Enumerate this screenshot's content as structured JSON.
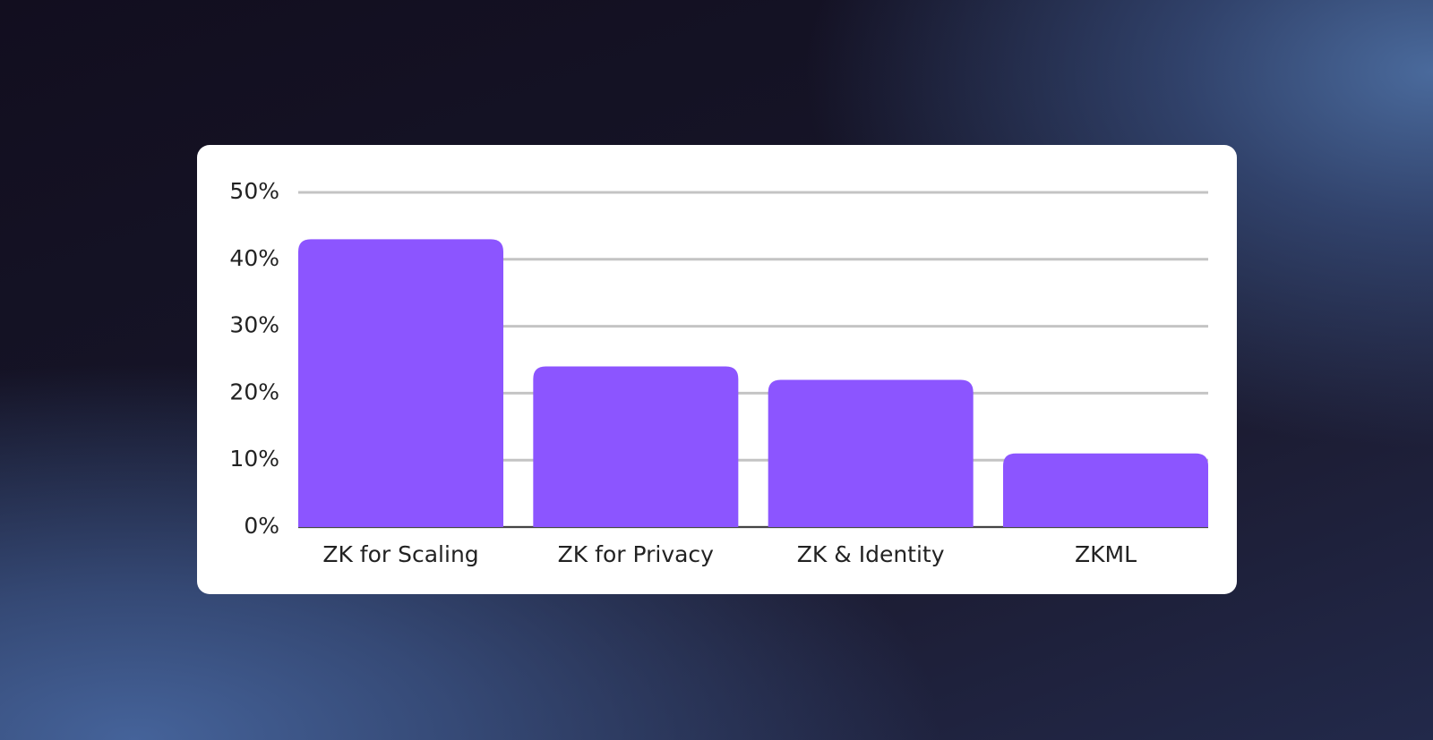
{
  "chart_data": {
    "type": "bar",
    "categories": [
      "ZK for Scaling",
      "ZK for Privacy",
      "ZK & Identity",
      "ZKML"
    ],
    "values": [
      43,
      24,
      22,
      11
    ],
    "color": "#8c55ff",
    "ylim": [
      0,
      50
    ],
    "yticks": [
      {
        "value": 0,
        "label": "0%"
      },
      {
        "value": 10,
        "label": "10%"
      },
      {
        "value": 20,
        "label": "20%"
      },
      {
        "value": 30,
        "label": "30%"
      },
      {
        "value": 40,
        "label": "40%"
      },
      {
        "value": 50,
        "label": "50%"
      }
    ],
    "grid": true
  }
}
